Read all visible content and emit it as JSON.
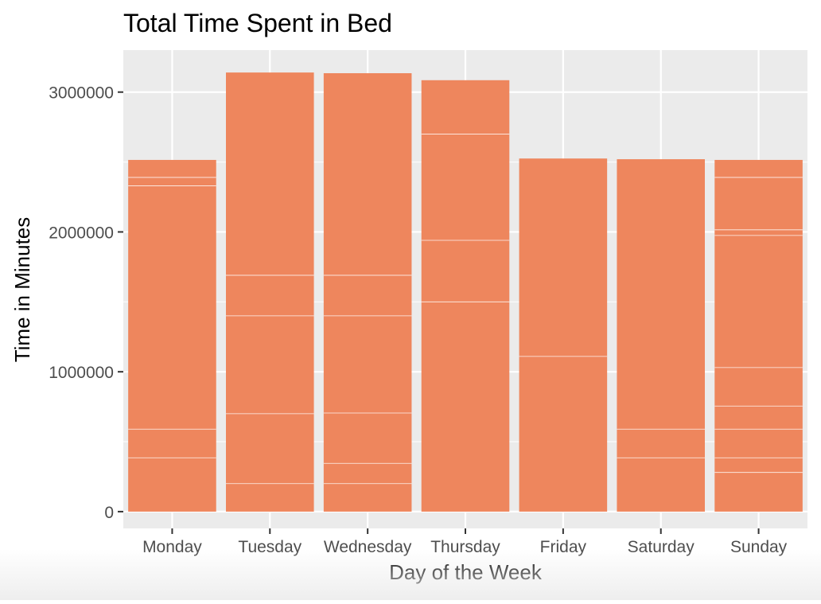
{
  "chart_data": {
    "type": "bar",
    "stacked": true,
    "title": "Total Time Spent in Bed",
    "xlabel": "Day of the Week",
    "ylabel": "Time in Minutes",
    "categories": [
      "Monday",
      "Tuesday",
      "Wednesday",
      "Thursday",
      "Friday",
      "Saturday",
      "Sunday"
    ],
    "values": [
      2515000,
      3140000,
      3135000,
      3085000,
      2525000,
      2520000,
      2515000
    ],
    "segment_boundaries": [
      [
        385000,
        590000,
        2330000,
        2390000
      ],
      [
        200000,
        700000,
        1400000,
        1690000
      ],
      [
        200000,
        345000,
        705000,
        1400000,
        1690000
      ],
      [
        1500000,
        1940000,
        2700000
      ],
      [
        1110000
      ],
      [
        385000,
        590000
      ],
      [
        280000,
        385000,
        590000,
        755000,
        1030000,
        1975000,
        2015000,
        2390000
      ]
    ],
    "ylim": [
      -120000,
      3300000
    ],
    "yticks": [
      0,
      1000000,
      2000000,
      3000000
    ],
    "ytick_labels": [
      "0",
      "1000000",
      "2000000",
      "3000000"
    ],
    "grid": true,
    "bar_color": "#EE865D",
    "panel_color": "#EBEBEB"
  }
}
